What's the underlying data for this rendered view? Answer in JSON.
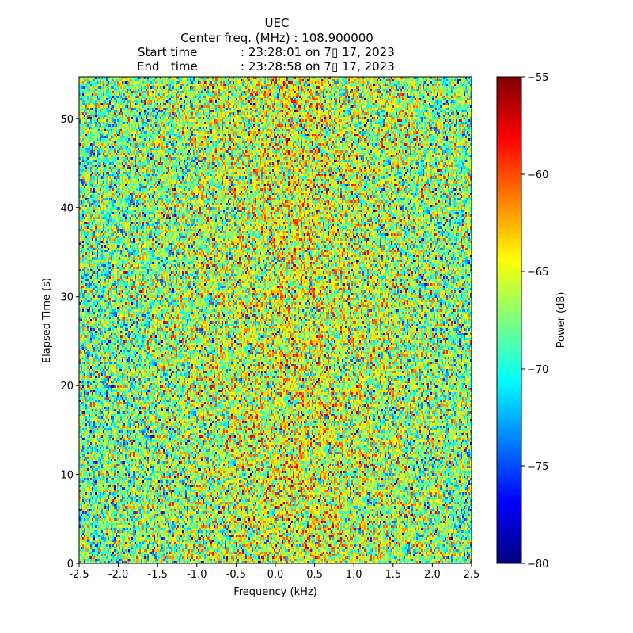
{
  "chart_data": {
    "type": "heatmap",
    "title_lines": [
      "UEC",
      "Center freq. (MHz) : 108.900000",
      "Start time         : 23:28:01 on 7▯ 17, 2023",
      "End   time         : 23:28:58 on 7▯ 17, 2023"
    ],
    "title": {
      "station": "UEC",
      "center_freq": "Center freq. (MHz) : 108.900000",
      "start_label": "Start time",
      "start_value": ": 23:28:01 on 7▯ 17, 2023",
      "end_label": "End   time",
      "end_value": ": 23:28:58 on 7▯ 17, 2023"
    },
    "xlabel": "Frequency (kHz)",
    "ylabel": "Elapsed Time (s)",
    "xlim": [
      -2.5,
      2.5
    ],
    "ylim": [
      0,
      54.7
    ],
    "xticks": [
      "-2.5",
      "-2.0",
      "-1.5",
      "-1.0",
      "-0.5",
      "0.0",
      "0.5",
      "1.0",
      "1.5",
      "2.0",
      "2.5"
    ],
    "xtick_values": [
      -2.5,
      -2.0,
      -1.5,
      -1.0,
      -0.5,
      0.0,
      0.5,
      1.0,
      1.5,
      2.0,
      2.5
    ],
    "yticks": [
      "0",
      "10",
      "20",
      "30",
      "40",
      "50"
    ],
    "ytick_values": [
      0,
      10,
      20,
      30,
      40,
      50
    ],
    "colorbar": {
      "label": "Power (dB)",
      "range": [
        -80,
        -55
      ],
      "ticks": [
        "−55",
        "−60",
        "−65",
        "−70",
        "−75",
        "−80"
      ],
      "tick_values": [
        -55,
        -60,
        -65,
        -70,
        -75,
        -80
      ],
      "colormap": "jet"
    },
    "value_model": {
      "description": "noise-like power",
      "mean_db": -68,
      "std_db": 4,
      "central_mean_db": -66.5
    }
  }
}
